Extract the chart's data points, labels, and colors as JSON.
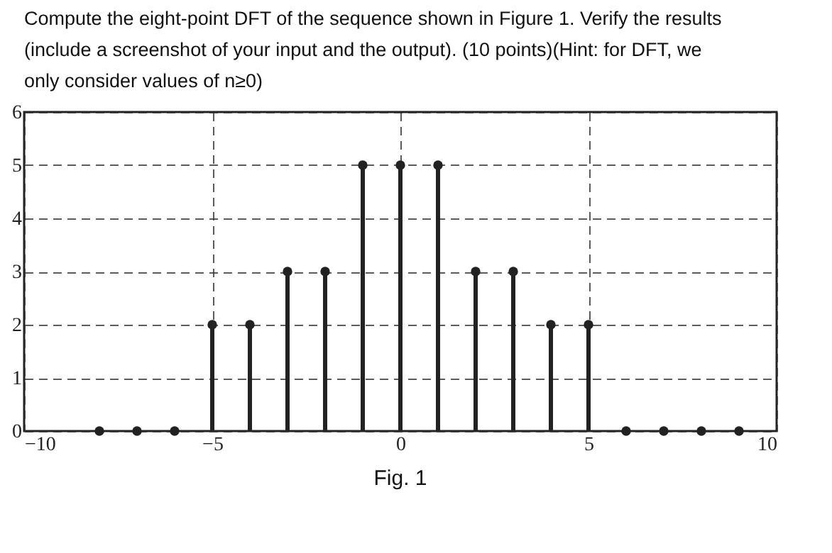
{
  "chart_data": {
    "type": "lollipop",
    "title": "Compute the eight-point DFT of the sequence shown in Figure 1. Verify the results (include a screenshot of your input and the output). (10 points)(Hint: for DFT, we only consider values of n≥0)",
    "x": [
      -8,
      -7,
      -6,
      -5,
      -4,
      -3,
      -2,
      -1,
      0,
      1,
      2,
      3,
      4,
      5,
      6,
      7,
      8,
      9
    ],
    "values": [
      0,
      0,
      0,
      2,
      2,
      3,
      3,
      5,
      5,
      5,
      3,
      3,
      2,
      2,
      0,
      0,
      0,
      0
    ],
    "color": "#222222",
    "xlim": [
      -10,
      10
    ],
    "xticks": [
      -10,
      -5,
      0,
      5,
      10
    ],
    "ylim": [
      0,
      6
    ],
    "yticks": [
      0,
      1,
      2,
      3,
      4,
      5,
      6
    ],
    "grid": true,
    "marker": "circle",
    "annotations": [
      "Fig. 1"
    ]
  }
}
